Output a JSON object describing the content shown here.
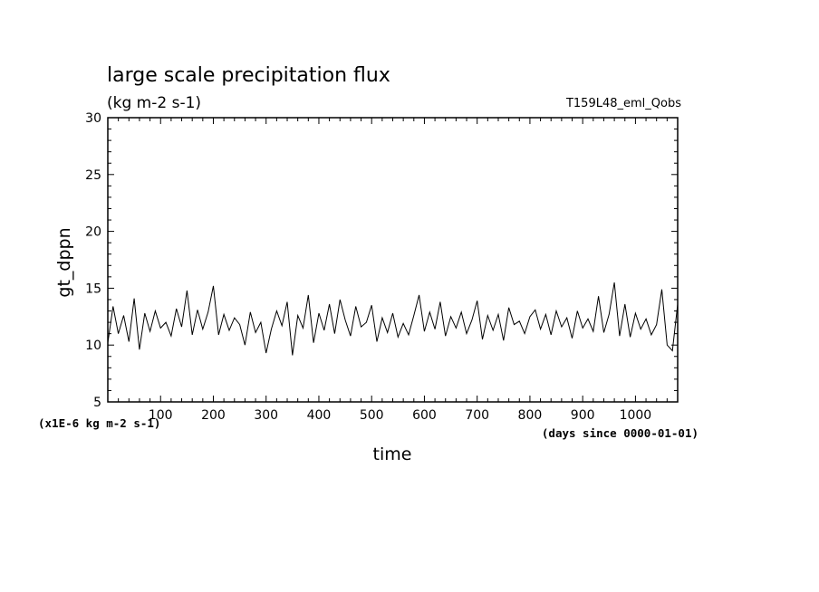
{
  "chart_data": {
    "type": "line",
    "title": "large scale precipitation flux",
    "subtitle": "(kg m-2 s-1)",
    "run_label": "T159L48_eml_Qobs",
    "xlabel": "time",
    "ylabel": "gt_dppn",
    "x_unit_label": "(days since 0000-01-01)",
    "y_unit_label": "(x1E-6 kg m-2 s-1)",
    "xlim": [
      0,
      1080
    ],
    "ylim": [
      5,
      30
    ],
    "x_ticks": [
      "100",
      "200",
      "300",
      "400",
      "500",
      "600",
      "700",
      "800",
      "900",
      "1000"
    ],
    "y_ticks": [
      "5",
      "10",
      "15",
      "20",
      "25",
      "30"
    ],
    "grid": false,
    "series": [
      {
        "x": [
          0,
          10,
          20,
          30,
          40,
          50,
          60,
          70,
          80,
          90,
          100,
          110,
          120,
          130,
          140,
          150,
          160,
          170,
          180,
          190,
          200,
          210,
          220,
          230,
          240,
          250,
          260,
          270,
          280,
          290,
          300,
          310,
          320,
          330,
          340,
          350,
          360,
          370,
          380,
          390,
          400,
          410,
          420,
          430,
          440,
          450,
          460,
          470,
          480,
          490,
          500,
          510,
          520,
          530,
          540,
          550,
          560,
          570,
          580,
          590,
          600,
          610,
          620,
          630,
          640,
          650,
          660,
          670,
          680,
          690,
          700,
          710,
          720,
          730,
          740,
          750,
          760,
          770,
          780,
          790,
          800,
          810,
          820,
          830,
          840,
          850,
          860,
          870,
          880,
          890,
          900,
          910,
          920,
          930,
          940,
          950,
          960,
          970,
          980,
          990,
          1000,
          1010,
          1020,
          1030,
          1040,
          1050,
          1060,
          1070,
          1080
        ],
        "values": [
          10.2,
          13.4,
          11.0,
          12.6,
          10.3,
          14.1,
          9.6,
          12.8,
          11.2,
          13.0,
          11.5,
          12.0,
          10.8,
          13.2,
          11.6,
          14.8,
          10.9,
          13.1,
          11.4,
          12.9,
          15.2,
          10.9,
          12.7,
          11.3,
          12.4,
          11.8,
          10.0,
          12.9,
          11.1,
          12.0,
          9.3,
          11.4,
          13.0,
          11.7,
          13.8,
          9.1,
          12.6,
          11.5,
          14.4,
          10.2,
          12.8,
          11.3,
          13.6,
          11.0,
          14.0,
          12.2,
          10.8,
          13.4,
          11.6,
          12.0,
          13.5,
          10.3,
          12.4,
          11.1,
          12.8,
          10.7,
          11.9,
          10.9,
          12.6,
          14.4,
          11.2,
          12.9,
          11.4,
          13.8,
          10.8,
          12.5,
          11.5,
          12.9,
          11.0,
          12.2,
          13.9,
          10.5,
          12.6,
          11.3,
          12.7,
          10.4,
          13.3,
          11.8,
          12.1,
          11.0,
          12.5,
          13.1,
          11.4,
          12.7,
          10.9,
          13.0,
          11.6,
          12.4,
          10.6,
          13.0,
          11.5,
          12.3,
          11.2,
          14.3,
          11.1,
          12.7,
          15.5,
          10.8,
          13.6,
          10.7,
          12.8,
          11.4,
          12.3,
          10.9,
          11.8,
          14.9,
          10.0,
          9.5,
          13.6
        ]
      }
    ]
  }
}
